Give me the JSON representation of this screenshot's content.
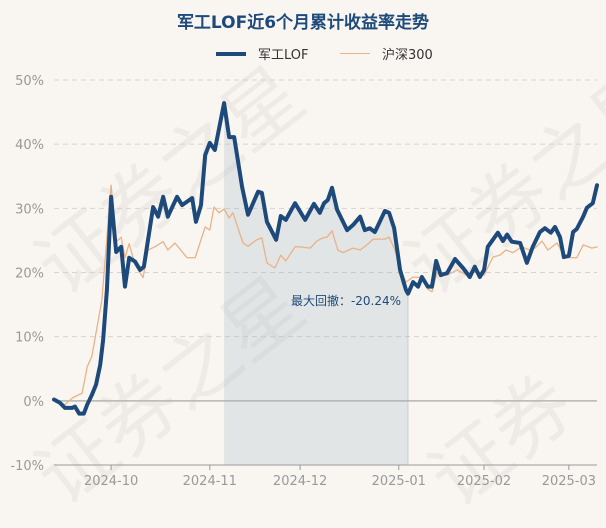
{
  "chart_data": {
    "type": "line",
    "title": "军工LOF近6个月累计收益率走势",
    "xlabel": "",
    "ylabel": "",
    "ylim": [
      -10,
      50
    ],
    "xlim": [
      0,
      129.3
    ],
    "grid": true,
    "legend_position": "top-center",
    "y_ticks": [
      {
        "value": 50,
        "label": "50%"
      },
      {
        "value": 40,
        "label": "40%"
      },
      {
        "value": 30,
        "label": "30%"
      },
      {
        "value": 20,
        "label": "20%"
      },
      {
        "value": 10,
        "label": "10%"
      },
      {
        "value": 0,
        "label": "0%"
      },
      {
        "value": -10,
        "label": "-10%"
      }
    ],
    "x_ticks": [
      {
        "value": 13.6,
        "label": "2024-10"
      },
      {
        "value": 37.1,
        "label": "2024-11"
      },
      {
        "value": 58.6,
        "label": "2024-12"
      },
      {
        "value": 82.1,
        "label": "2025-01"
      },
      {
        "value": 102.4,
        "label": "2025-02"
      },
      {
        "value": 122.6,
        "label": "2025-03"
      }
    ],
    "series": [
      {
        "name": "军工LOF",
        "color": "#1d4a7a",
        "points": [
          [
            0,
            0.2
          ],
          [
            1.4,
            -0.3
          ],
          [
            2.6,
            -1.1
          ],
          [
            4.3,
            -1.1
          ],
          [
            5.0,
            -0.9
          ],
          [
            6.0,
            -2.0
          ],
          [
            7.1,
            -2.0
          ],
          [
            7.9,
            -0.6
          ],
          [
            9.0,
            0.9
          ],
          [
            10.0,
            2.5
          ],
          [
            11.0,
            5.6
          ],
          [
            11.7,
            9.5
          ],
          [
            12.6,
            17.3
          ],
          [
            13.6,
            31.8
          ],
          [
            14.8,
            23.2
          ],
          [
            16.0,
            24.0
          ],
          [
            16.9,
            17.8
          ],
          [
            17.9,
            22.3
          ],
          [
            19.3,
            21.7
          ],
          [
            20.5,
            20.4
          ],
          [
            21.4,
            20.9
          ],
          [
            23.6,
            30.2
          ],
          [
            24.8,
            28.7
          ],
          [
            26.0,
            31.8
          ],
          [
            27.1,
            28.7
          ],
          [
            29.3,
            31.8
          ],
          [
            30.5,
            30.5
          ],
          [
            32.9,
            31.6
          ],
          [
            33.8,
            27.9
          ],
          [
            35.0,
            30.5
          ],
          [
            36.0,
            38.3
          ],
          [
            37.1,
            40.2
          ],
          [
            38.3,
            39.1
          ],
          [
            40.5,
            46.4
          ],
          [
            41.7,
            41.1
          ],
          [
            42.9,
            41.1
          ],
          [
            44.8,
            33.3
          ],
          [
            46.2,
            29.0
          ],
          [
            48.6,
            32.6
          ],
          [
            49.5,
            32.4
          ],
          [
            50.7,
            27.9
          ],
          [
            52.9,
            25.1
          ],
          [
            54.0,
            28.8
          ],
          [
            55.2,
            28.2
          ],
          [
            57.4,
            30.8
          ],
          [
            59.8,
            28.2
          ],
          [
            61.9,
            30.7
          ],
          [
            63.3,
            29.3
          ],
          [
            64.3,
            30.8
          ],
          [
            65.2,
            31.3
          ],
          [
            66.2,
            33.2
          ],
          [
            67.4,
            29.8
          ],
          [
            69.8,
            26.6
          ],
          [
            71.2,
            27.4
          ],
          [
            72.9,
            28.7
          ],
          [
            74.0,
            26.6
          ],
          [
            75.2,
            26.9
          ],
          [
            76.4,
            26.3
          ],
          [
            78.8,
            29.6
          ],
          [
            79.8,
            29.3
          ],
          [
            81.0,
            26.9
          ],
          [
            82.4,
            20.4
          ],
          [
            83.8,
            17.3
          ],
          [
            84.3,
            16.7
          ],
          [
            85.5,
            18.5
          ],
          [
            86.7,
            17.8
          ],
          [
            87.6,
            19.3
          ],
          [
            89.0,
            17.8
          ],
          [
            90.0,
            17.8
          ],
          [
            91.0,
            21.8
          ],
          [
            92.1,
            19.6
          ],
          [
            93.6,
            19.9
          ],
          [
            95.5,
            22.1
          ],
          [
            97.4,
            20.7
          ],
          [
            99.0,
            19.3
          ],
          [
            100.2,
            20.9
          ],
          [
            101.4,
            19.3
          ],
          [
            102.4,
            20.4
          ],
          [
            103.3,
            24.0
          ],
          [
            105.7,
            26.2
          ],
          [
            106.9,
            24.9
          ],
          [
            107.9,
            25.9
          ],
          [
            109.0,
            24.8
          ],
          [
            111.0,
            24.6
          ],
          [
            112.6,
            21.5
          ],
          [
            114.0,
            24.0
          ],
          [
            115.7,
            26.3
          ],
          [
            116.9,
            26.9
          ],
          [
            118.3,
            26.2
          ],
          [
            119.3,
            27.1
          ],
          [
            120.5,
            25.5
          ],
          [
            121.4,
            22.4
          ],
          [
            122.6,
            22.6
          ],
          [
            123.6,
            26.3
          ],
          [
            124.5,
            26.8
          ],
          [
            126.0,
            28.7
          ],
          [
            126.9,
            30.1
          ],
          [
            128.3,
            30.8
          ],
          [
            129.3,
            33.6
          ]
        ]
      },
      {
        "name": "沪深300",
        "color": "#eab285",
        "points": [
          [
            0.2,
            0.2
          ],
          [
            2.6,
            -0.6
          ],
          [
            4.5,
            0.5
          ],
          [
            6.7,
            1.2
          ],
          [
            7.9,
            5.3
          ],
          [
            9.0,
            6.9
          ],
          [
            11.4,
            15.7
          ],
          [
            13.6,
            33.6
          ],
          [
            14.8,
            24.8
          ],
          [
            16.0,
            25.5
          ],
          [
            16.9,
            22.3
          ],
          [
            17.9,
            24.5
          ],
          [
            19.3,
            21.2
          ],
          [
            21.2,
            19.2
          ],
          [
            22.4,
            23.5
          ],
          [
            24.0,
            24.0
          ],
          [
            26.0,
            24.8
          ],
          [
            27.1,
            23.5
          ],
          [
            28.8,
            24.6
          ],
          [
            31.7,
            22.3
          ],
          [
            33.6,
            22.3
          ],
          [
            36.0,
            27.1
          ],
          [
            37.1,
            26.6
          ],
          [
            38.1,
            30.2
          ],
          [
            39.3,
            29.3
          ],
          [
            40.5,
            29.9
          ],
          [
            41.7,
            28.5
          ],
          [
            42.6,
            29.3
          ],
          [
            45.0,
            24.6
          ],
          [
            46.2,
            24.1
          ],
          [
            48.3,
            25.1
          ],
          [
            49.5,
            25.4
          ],
          [
            50.7,
            21.5
          ],
          [
            52.6,
            20.7
          ],
          [
            54.0,
            22.7
          ],
          [
            55.2,
            21.8
          ],
          [
            57.4,
            24.0
          ],
          [
            58.6,
            24.0
          ],
          [
            61.0,
            23.8
          ],
          [
            62.6,
            24.9
          ],
          [
            64.0,
            25.4
          ],
          [
            65.0,
            25.5
          ],
          [
            66.2,
            26.5
          ],
          [
            67.6,
            23.5
          ],
          [
            68.8,
            23.1
          ],
          [
            71.2,
            23.8
          ],
          [
            72.9,
            23.5
          ],
          [
            74.5,
            24.3
          ],
          [
            76.0,
            25.2
          ],
          [
            78.8,
            25.2
          ],
          [
            79.8,
            25.5
          ],
          [
            81.2,
            23.5
          ],
          [
            82.4,
            20.7
          ],
          [
            83.8,
            18.5
          ],
          [
            85.5,
            19.3
          ],
          [
            87.6,
            19.2
          ],
          [
            89.0,
            17.4
          ],
          [
            90.0,
            17.0
          ],
          [
            91.2,
            19.9
          ],
          [
            93.6,
            19.6
          ],
          [
            96.0,
            20.4
          ],
          [
            98.3,
            19.6
          ],
          [
            99.8,
            20.1
          ],
          [
            102.4,
            19.6
          ],
          [
            104.5,
            22.4
          ],
          [
            106.2,
            22.7
          ],
          [
            107.6,
            23.5
          ],
          [
            109.3,
            23.1
          ],
          [
            111.4,
            24.0
          ],
          [
            113.3,
            23.5
          ],
          [
            114.5,
            23.8
          ],
          [
            116.2,
            24.9
          ],
          [
            117.6,
            23.5
          ],
          [
            119.8,
            24.6
          ],
          [
            121.7,
            22.3
          ],
          [
            124.5,
            22.3
          ],
          [
            126.0,
            24.3
          ],
          [
            128.1,
            23.8
          ],
          [
            129.3,
            24.0
          ]
        ]
      }
    ],
    "max_drawdown": {
      "start": 40.5,
      "end": 84.3,
      "label": "最大回撤：-20.24%",
      "value": -20.24
    },
    "watermark": "证券之星"
  }
}
